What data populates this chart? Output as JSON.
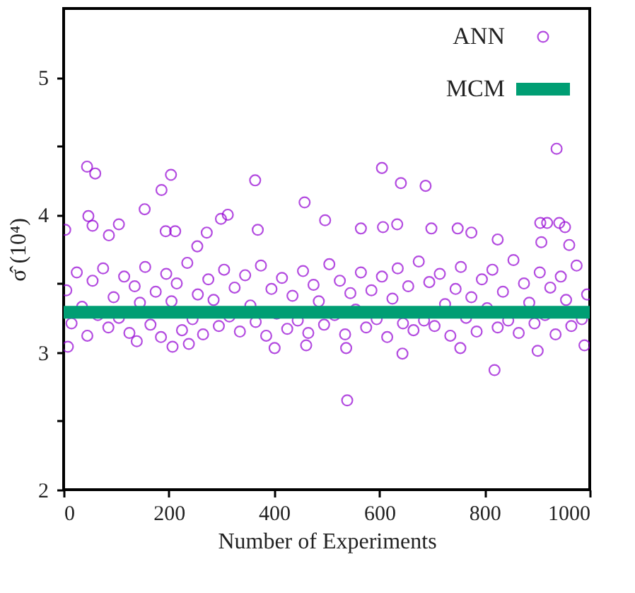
{
  "chart_data": {
    "type": "scatter",
    "xlabel": "Number of Experiments",
    "ylabel": "σ̂ (10⁴)",
    "xlim": [
      0,
      1000
    ],
    "xticks": [
      0,
      200,
      400,
      600,
      800,
      1000
    ],
    "ylim": [
      2,
      5.5
    ],
    "yticks": [
      2,
      {
        "value": 2.5,
        "label": null
      },
      3,
      {
        "value": 3.5,
        "label": null
      },
      4,
      {
        "value": 4.5,
        "label": null
      },
      5
    ],
    "grid": false,
    "legend": "top right",
    "series": [
      {
        "name": "ANN",
        "color": "#9400d3",
        "marker": "circle",
        "x": [
          44.5,
          60,
          204,
          186,
          154,
          364,
          312,
          458,
          497,
          539,
          605,
          641,
          688,
          819,
          937,
          953,
          906,
          47,
          55,
          105,
          86,
          194,
          212,
          3,
          369,
          299,
          272,
          254,
          565,
          607,
          634,
          699,
          749,
          775,
          825,
          919,
          942,
          908,
          961,
          644,
          537,
          901,
          990,
          754,
          8,
          139,
          238,
          401,
          461,
          207,
          5,
          15,
          25,
          35,
          45,
          55,
          65,
          75,
          85,
          95,
          105,
          115,
          125,
          135,
          145,
          155,
          165,
          175,
          185,
          195,
          205,
          215,
          225,
          235,
          245,
          255,
          265,
          275,
          285,
          295,
          305,
          315,
          325,
          335,
          345,
          355,
          365,
          375,
          385,
          395,
          405,
          415,
          425,
          435,
          445,
          455,
          465,
          475,
          485,
          495,
          505,
          515,
          525,
          535,
          545,
          555,
          565,
          575,
          585,
          595,
          605,
          615,
          625,
          635,
          645,
          655,
          665,
          675,
          685,
          695,
          705,
          715,
          725,
          735,
          745,
          755,
          765,
          775,
          785,
          795,
          805,
          815,
          825,
          835,
          845,
          855,
          865,
          875,
          885,
          895,
          905,
          915,
          925,
          935,
          945,
          955,
          965,
          975,
          985,
          995
        ],
        "values": [
          4.35,
          4.3,
          4.29,
          4.18,
          4.04,
          4.25,
          4.0,
          4.09,
          3.96,
          2.65,
          4.34,
          4.23,
          4.21,
          2.87,
          4.48,
          3.91,
          3.94,
          3.99,
          3.92,
          3.93,
          3.85,
          3.88,
          3.88,
          3.89,
          3.89,
          3.97,
          3.87,
          3.77,
          3.9,
          3.91,
          3.93,
          3.9,
          3.9,
          3.87,
          3.82,
          3.94,
          3.94,
          3.8,
          3.78,
          2.99,
          3.03,
          3.01,
          3.05,
          3.03,
          3.04,
          3.08,
          3.06,
          3.03,
          3.05,
          3.04,
          3.45,
          3.21,
          3.58,
          3.33,
          3.12,
          3.52,
          3.27,
          3.61,
          3.18,
          3.4,
          3.25,
          3.55,
          3.14,
          3.48,
          3.36,
          3.62,
          3.2,
          3.44,
          3.11,
          3.57,
          3.37,
          3.5,
          3.16,
          3.65,
          3.24,
          3.42,
          3.13,
          3.53,
          3.38,
          3.19,
          3.6,
          3.26,
          3.47,
          3.15,
          3.56,
          3.34,
          3.22,
          3.63,
          3.12,
          3.46,
          3.28,
          3.54,
          3.17,
          3.41,
          3.23,
          3.59,
          3.14,
          3.49,
          3.37,
          3.2,
          3.64,
          3.27,
          3.52,
          3.13,
          3.43,
          3.31,
          3.58,
          3.18,
          3.45,
          3.24,
          3.55,
          3.11,
          3.39,
          3.61,
          3.21,
          3.48,
          3.16,
          3.66,
          3.23,
          3.51,
          3.19,
          3.57,
          3.35,
          3.12,
          3.46,
          3.62,
          3.25,
          3.4,
          3.15,
          3.53,
          3.32,
          3.6,
          3.18,
          3.44,
          3.23,
          3.67,
          3.14,
          3.5,
          3.36,
          3.21,
          3.58,
          3.27,
          3.47,
          3.13,
          3.55,
          3.38,
          3.19,
          3.63,
          3.24,
          3.42
        ]
      },
      {
        "name": "MCM",
        "color": "#009e73",
        "type": "line",
        "line_style": "solid",
        "x": [
          0,
          1000
        ],
        "values": [
          3.29,
          3.29
        ]
      }
    ]
  }
}
